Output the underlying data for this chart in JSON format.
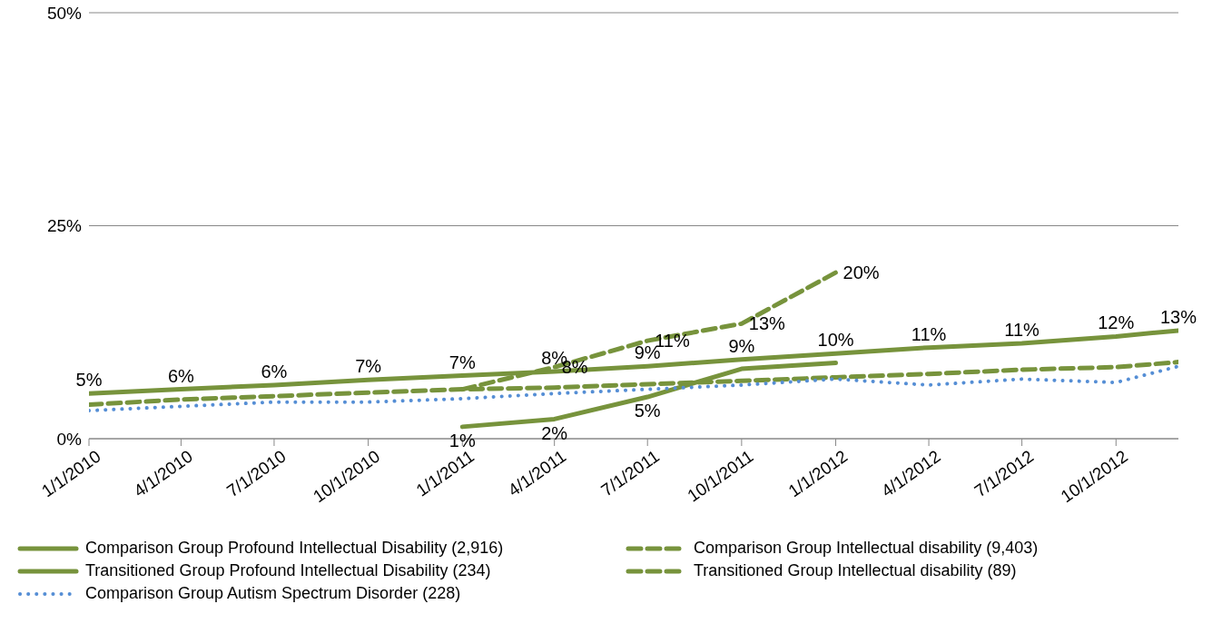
{
  "chart_data": {
    "type": "line",
    "x": [
      "2010-01-01",
      "2010-04-01",
      "2010-07-01",
      "2010-10-01",
      "2011-01-01",
      "2011-04-01",
      "2011-07-01",
      "2011-10-01",
      "2012-01-01",
      "2012-04-01",
      "2012-07-01",
      "2012-10-01",
      "2012-12-01"
    ],
    "xlim": [
      "2010-01-01",
      "2012-12-01"
    ],
    "xticks": [
      {
        "value": "2010-01-01",
        "label": "1/1/2010"
      },
      {
        "value": "2010-04-01",
        "label": "4/1/2010"
      },
      {
        "value": "2010-07-01",
        "label": "7/1/2010"
      },
      {
        "value": "2010-10-01",
        "label": "10/1/2010"
      },
      {
        "value": "2011-01-01",
        "label": "1/1/2011"
      },
      {
        "value": "2011-04-01",
        "label": "4/1/2011"
      },
      {
        "value": "2011-07-01",
        "label": "7/1/2011"
      },
      {
        "value": "2011-10-01",
        "label": "10/1/2011"
      },
      {
        "value": "2012-01-01",
        "label": "1/1/2012"
      },
      {
        "value": "2012-04-01",
        "label": "4/1/2012"
      },
      {
        "value": "2012-07-01",
        "label": "7/1/2012"
      },
      {
        "value": "2012-10-01",
        "label": "10/1/2012"
      }
    ],
    "ylim": [
      0,
      50
    ],
    "yticks": [
      {
        "value": 0,
        "label": "0%"
      },
      {
        "value": 25,
        "label": "25%"
      },
      {
        "value": 50,
        "label": "50%"
      }
    ],
    "grid": "y",
    "legend": "bottom",
    "marker": "none",
    "series": [
      {
        "name": "Comparison Group Profound Intellectual Disability (2,916)",
        "color": "#77933c",
        "line_style": "solid",
        "values": [
          5.3,
          5.8,
          6.3,
          6.9,
          7.4,
          7.9,
          8.5,
          9.3,
          10.0,
          10.7,
          11.2,
          12.0,
          12.7
        ],
        "value_labels": [
          "5%",
          "6%",
          "6%",
          "7%",
          "7%",
          "8%",
          "9%",
          "9%",
          "10%",
          "11%",
          "11%",
          "12%",
          "13%"
        ]
      },
      {
        "name": "Comparison Group Intellectual disability (9,403)",
        "color": "#77933c",
        "line_style": "dashed",
        "values": [
          4.0,
          4.6,
          5.0,
          5.4,
          5.8,
          6.0,
          6.4,
          6.8,
          7.2,
          7.6,
          8.1,
          8.4,
          9.0
        ]
      },
      {
        "name": "Transitioned Group Profound Intellectual Disability (234)",
        "color": "#77933c",
        "line_style": "solid",
        "x": [
          "2011-01-01",
          "2011-04-01",
          "2011-07-01",
          "2011-10-01",
          "2012-01-01"
        ],
        "values": [
          1.4,
          2.3,
          4.9,
          8.2,
          8.9
        ],
        "value_labels": [
          "1%",
          "2%",
          "5%",
          null,
          null
        ]
      },
      {
        "name": "Transitioned Group Intellectual disability (89)",
        "color": "#77933c",
        "line_style": "dashed",
        "x": [
          "2011-01-01",
          "2011-04-01",
          "2011-07-01",
          "2011-10-01",
          "2012-01-01"
        ],
        "values": [
          5.8,
          8.4,
          11.5,
          13.5,
          19.5
        ],
        "value_labels": [
          null,
          "8%",
          "11%",
          "13%",
          "20%"
        ]
      },
      {
        "name": "Comparison Group Autism Spectrum Disorder (228)",
        "color": "#558ed5",
        "line_style": "dotted",
        "values": [
          3.3,
          3.8,
          4.3,
          4.3,
          4.7,
          5.3,
          5.8,
          6.3,
          7.0,
          6.3,
          7.0,
          6.6,
          8.5
        ]
      }
    ]
  }
}
